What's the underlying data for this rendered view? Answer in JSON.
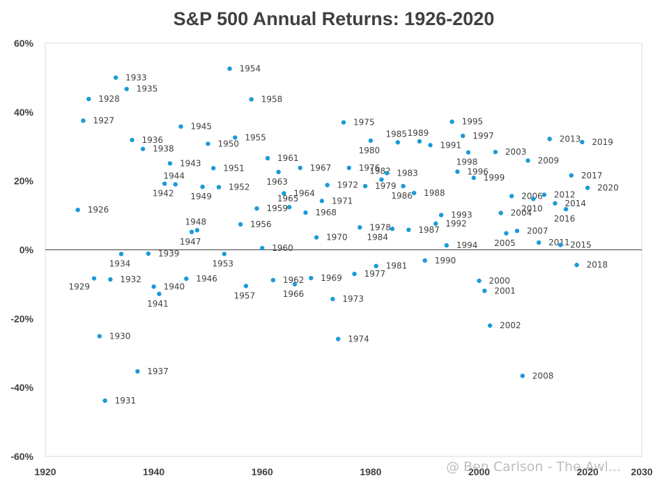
{
  "chart_data": {
    "type": "scatter",
    "title": "S&P 500 Annual Returns: 1926-2020",
    "xlabel": "",
    "ylabel": "",
    "xlim": [
      1920,
      2030
    ],
    "ylim": [
      -60,
      60
    ],
    "xticks": [
      1920,
      1940,
      1960,
      1980,
      2000,
      2020,
      2030
    ],
    "xtick_labels": [
      "1920",
      "1940",
      "1960",
      "1980",
      "2000",
      "2020",
      "2030"
    ],
    "yticks": [
      -60,
      -40,
      -20,
      0,
      20,
      40,
      60
    ],
    "ytick_labels": [
      "-60%",
      "-40%",
      "-20%",
      "0%",
      "20%",
      "40%",
      "60%"
    ],
    "point_color": "#1a9bd7",
    "zero_line": true,
    "grid": false,
    "legend": "none",
    "points": [
      {
        "x": 1926,
        "y": 11.6,
        "label": "1926"
      },
      {
        "x": 1927,
        "y": 37.5,
        "label": "1927"
      },
      {
        "x": 1928,
        "y": 43.8,
        "label": "1928"
      },
      {
        "x": 1929,
        "y": -8.3,
        "label": "1929"
      },
      {
        "x": 1930,
        "y": -25.1,
        "label": "1930"
      },
      {
        "x": 1931,
        "y": -43.8,
        "label": "1931"
      },
      {
        "x": 1932,
        "y": -8.6,
        "label": "1932"
      },
      {
        "x": 1933,
        "y": 50.0,
        "label": "1933"
      },
      {
        "x": 1934,
        "y": -1.2,
        "label": "1934"
      },
      {
        "x": 1935,
        "y": 46.7,
        "label": "1935"
      },
      {
        "x": 1936,
        "y": 31.9,
        "label": "1936"
      },
      {
        "x": 1937,
        "y": -35.3,
        "label": "1937"
      },
      {
        "x": 1938,
        "y": 29.3,
        "label": "1938"
      },
      {
        "x": 1939,
        "y": -1.1,
        "label": "1939"
      },
      {
        "x": 1940,
        "y": -10.7,
        "label": "1940"
      },
      {
        "x": 1941,
        "y": -12.8,
        "label": "1941"
      },
      {
        "x": 1942,
        "y": 19.2,
        "label": "1942"
      },
      {
        "x": 1943,
        "y": 25.1,
        "label": "1943"
      },
      {
        "x": 1944,
        "y": 19.0,
        "label": "1944"
      },
      {
        "x": 1945,
        "y": 35.8,
        "label": "1945"
      },
      {
        "x": 1946,
        "y": -8.4,
        "label": "1946"
      },
      {
        "x": 1947,
        "y": 5.2,
        "label": "1947"
      },
      {
        "x": 1948,
        "y": 5.7,
        "label": "1948"
      },
      {
        "x": 1949,
        "y": 18.3,
        "label": "1949"
      },
      {
        "x": 1950,
        "y": 30.8,
        "label": "1950"
      },
      {
        "x": 1951,
        "y": 23.7,
        "label": "1951"
      },
      {
        "x": 1952,
        "y": 18.2,
        "label": "1952"
      },
      {
        "x": 1953,
        "y": -1.2,
        "label": "1953"
      },
      {
        "x": 1954,
        "y": 52.6,
        "label": "1954"
      },
      {
        "x": 1955,
        "y": 32.6,
        "label": "1955"
      },
      {
        "x": 1956,
        "y": 7.4,
        "label": "1956"
      },
      {
        "x": 1957,
        "y": -10.5,
        "label": "1957"
      },
      {
        "x": 1958,
        "y": 43.7,
        "label": "1958"
      },
      {
        "x": 1959,
        "y": 12.0,
        "label": "1959"
      },
      {
        "x": 1960,
        "y": 0.5,
        "label": "1960"
      },
      {
        "x": 1961,
        "y": 26.6,
        "label": "1961"
      },
      {
        "x": 1962,
        "y": -8.8,
        "label": "1962"
      },
      {
        "x": 1963,
        "y": 22.6,
        "label": "1963"
      },
      {
        "x": 1964,
        "y": 16.4,
        "label": "1964"
      },
      {
        "x": 1965,
        "y": 12.4,
        "label": "1965"
      },
      {
        "x": 1966,
        "y": -10.0,
        "label": "1966"
      },
      {
        "x": 1967,
        "y": 23.8,
        "label": "1967"
      },
      {
        "x": 1968,
        "y": 10.8,
        "label": "1968"
      },
      {
        "x": 1969,
        "y": -8.2,
        "label": "1969"
      },
      {
        "x": 1970,
        "y": 3.6,
        "label": "1970"
      },
      {
        "x": 1971,
        "y": 14.2,
        "label": "1971"
      },
      {
        "x": 1972,
        "y": 18.8,
        "label": "1972"
      },
      {
        "x": 1973,
        "y": -14.3,
        "label": "1973"
      },
      {
        "x": 1974,
        "y": -25.9,
        "label": "1974"
      },
      {
        "x": 1975,
        "y": 37.0,
        "label": "1975"
      },
      {
        "x": 1976,
        "y": 23.8,
        "label": "1976"
      },
      {
        "x": 1977,
        "y": -7.0,
        "label": "1977"
      },
      {
        "x": 1978,
        "y": 6.5,
        "label": "1978"
      },
      {
        "x": 1979,
        "y": 18.5,
        "label": "1979"
      },
      {
        "x": 1980,
        "y": 31.7,
        "label": "1980"
      },
      {
        "x": 1981,
        "y": -4.7,
        "label": "1981"
      },
      {
        "x": 1982,
        "y": 20.4,
        "label": "1982"
      },
      {
        "x": 1983,
        "y": 22.3,
        "label": "1983"
      },
      {
        "x": 1984,
        "y": 6.1,
        "label": "1984"
      },
      {
        "x": 1985,
        "y": 31.2,
        "label": "1985"
      },
      {
        "x": 1986,
        "y": 18.5,
        "label": "1986"
      },
      {
        "x": 1987,
        "y": 5.8,
        "label": "1987"
      },
      {
        "x": 1988,
        "y": 16.5,
        "label": "1988"
      },
      {
        "x": 1989,
        "y": 31.5,
        "label": "1989"
      },
      {
        "x": 1990,
        "y": -3.1,
        "label": "1990"
      },
      {
        "x": 1991,
        "y": 30.4,
        "label": "1991"
      },
      {
        "x": 1992,
        "y": 7.6,
        "label": "1992"
      },
      {
        "x": 1993,
        "y": 10.1,
        "label": "1993"
      },
      {
        "x": 1994,
        "y": 1.3,
        "label": "1994"
      },
      {
        "x": 1995,
        "y": 37.2,
        "label": "1995"
      },
      {
        "x": 1996,
        "y": 22.7,
        "label": "1996"
      },
      {
        "x": 1997,
        "y": 33.1,
        "label": "1997"
      },
      {
        "x": 1998,
        "y": 28.3,
        "label": "1998"
      },
      {
        "x": 1999,
        "y": 20.9,
        "label": "1999"
      },
      {
        "x": 2000,
        "y": -9.0,
        "label": "2000"
      },
      {
        "x": 2001,
        "y": -11.9,
        "label": "2001"
      },
      {
        "x": 2002,
        "y": -22.0,
        "label": "2002"
      },
      {
        "x": 2003,
        "y": 28.4,
        "label": "2003"
      },
      {
        "x": 2004,
        "y": 10.7,
        "label": "2004"
      },
      {
        "x": 2005,
        "y": 4.8,
        "label": "2005"
      },
      {
        "x": 2006,
        "y": 15.6,
        "label": "2006"
      },
      {
        "x": 2007,
        "y": 5.5,
        "label": "2007"
      },
      {
        "x": 2008,
        "y": -36.6,
        "label": "2008"
      },
      {
        "x": 2009,
        "y": 25.9,
        "label": "2009"
      },
      {
        "x": 2010,
        "y": 14.8,
        "label": "2010"
      },
      {
        "x": 2011,
        "y": 2.1,
        "label": "2011"
      },
      {
        "x": 2012,
        "y": 16.0,
        "label": "2012"
      },
      {
        "x": 2013,
        "y": 32.2,
        "label": "2013"
      },
      {
        "x": 2014,
        "y": 13.5,
        "label": "2014"
      },
      {
        "x": 2015,
        "y": 1.4,
        "label": "2015"
      },
      {
        "x": 2016,
        "y": 11.8,
        "label": "2016"
      },
      {
        "x": 2017,
        "y": 21.6,
        "label": "2017"
      },
      {
        "x": 2018,
        "y": -4.4,
        "label": "2018"
      },
      {
        "x": 2019,
        "y": 31.3,
        "label": "2019"
      },
      {
        "x": 2020,
        "y": 18.0,
        "label": "2020"
      }
    ]
  },
  "watermark": "@ Ben Carlson - The Awl..."
}
